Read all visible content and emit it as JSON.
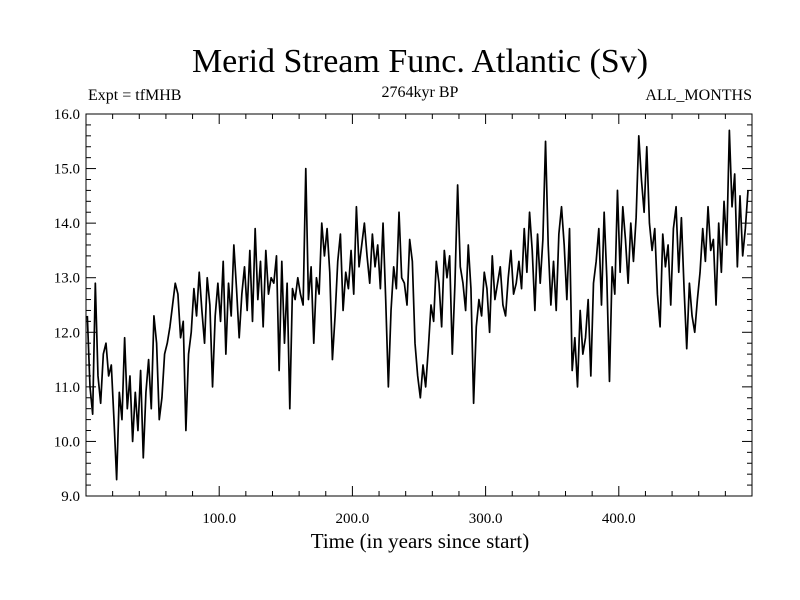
{
  "chart_data": {
    "type": "line",
    "title": "Merid Stream Func. Atlantic (Sv)",
    "subtitle": "2764kyr BP",
    "label_left": "Expt = tfMHB",
    "label_right": "ALL_MONTHS",
    "xlabel": "Time (in years since start)",
    "ylabel": "",
    "xlim": [
      0,
      500
    ],
    "ylim": [
      9.0,
      16.0
    ],
    "x_ticks": [
      100,
      200,
      300,
      400
    ],
    "x_tick_labels": [
      "100.0",
      "200.0",
      "300.0",
      "400.0"
    ],
    "y_ticks": [
      9,
      10,
      11,
      12,
      13,
      14,
      15,
      16
    ],
    "y_tick_labels": [
      "9.0",
      "10.0",
      "11.0",
      "12.0",
      "13.0",
      "14.0",
      "15.0",
      "16.0"
    ],
    "series": [
      {
        "name": "tfMHB",
        "color": "#000000",
        "x_start": 1,
        "x_step": 2,
        "values": [
          12.3,
          11.0,
          10.5,
          12.9,
          11.2,
          10.7,
          11.6,
          11.8,
          11.2,
          11.4,
          10.4,
          9.3,
          10.9,
          10.4,
          11.9,
          10.6,
          11.2,
          10.0,
          10.9,
          10.2,
          11.3,
          9.7,
          10.9,
          11.5,
          10.6,
          12.3,
          11.8,
          10.4,
          10.8,
          11.6,
          11.8,
          12.1,
          12.5,
          12.9,
          12.7,
          11.9,
          12.2,
          10.2,
          11.6,
          12.0,
          12.8,
          12.3,
          13.1,
          12.4,
          11.8,
          13.0,
          12.5,
          11.0,
          12.3,
          12.9,
          12.2,
          13.3,
          11.6,
          12.9,
          12.3,
          13.6,
          12.8,
          11.9,
          12.7,
          13.2,
          12.4,
          13.5,
          12.2,
          13.9,
          12.6,
          13.3,
          12.1,
          13.5,
          12.7,
          13.0,
          12.9,
          13.4,
          11.3,
          13.3,
          11.8,
          12.9,
          10.6,
          12.8,
          12.6,
          13.0,
          12.7,
          12.5,
          15.0,
          12.6,
          13.2,
          11.8,
          13.0,
          12.7,
          14.0,
          13.4,
          13.9,
          13.1,
          11.5,
          12.3,
          13.3,
          13.8,
          12.4,
          13.1,
          12.8,
          13.5,
          12.7,
          14.3,
          13.2,
          13.6,
          14.0,
          13.4,
          12.9,
          13.8,
          13.2,
          13.6,
          12.8,
          14.0,
          12.6,
          11.0,
          12.4,
          13.2,
          12.8,
          14.2,
          13.0,
          12.9,
          12.5,
          13.7,
          13.3,
          11.8,
          11.2,
          10.8,
          11.4,
          11.0,
          11.7,
          12.5,
          12.2,
          13.3,
          12.9,
          12.1,
          13.5,
          13.0,
          13.4,
          11.6,
          12.9,
          14.7,
          13.2,
          12.9,
          12.4,
          13.6,
          12.8,
          10.7,
          12.1,
          12.6,
          12.3,
          13.1,
          12.8,
          12.0,
          13.4,
          12.6,
          12.9,
          13.2,
          12.5,
          12.3,
          13.0,
          13.5,
          12.7,
          12.9,
          13.3,
          12.8,
          13.9,
          13.1,
          14.2,
          13.5,
          12.4,
          13.8,
          12.9,
          13.7,
          15.5,
          13.6,
          12.5,
          13.3,
          12.4,
          13.8,
          14.3,
          13.6,
          12.6,
          13.9,
          11.3,
          11.9,
          11.0,
          12.4,
          11.6,
          11.9,
          12.6,
          11.2,
          12.9,
          13.3,
          13.9,
          12.5,
          14.2,
          13.0,
          11.1,
          13.2,
          12.7,
          14.6,
          13.1,
          14.3,
          13.7,
          12.9,
          14.0,
          13.3,
          14.1,
          15.6,
          14.8,
          14.2,
          15.4,
          14.0,
          13.5,
          13.9,
          12.7,
          12.1,
          13.8,
          13.2,
          13.6,
          12.5,
          13.9,
          14.3,
          13.1,
          14.1,
          12.8,
          11.7,
          12.9,
          12.3,
          12.0,
          12.6,
          13.1,
          13.9,
          13.3,
          14.3,
          13.5,
          13.7,
          12.5,
          14.0,
          13.1,
          14.4,
          13.6,
          15.7,
          14.3,
          14.9,
          13.2,
          14.5,
          13.4,
          13.9,
          14.6
        ]
      }
    ]
  }
}
